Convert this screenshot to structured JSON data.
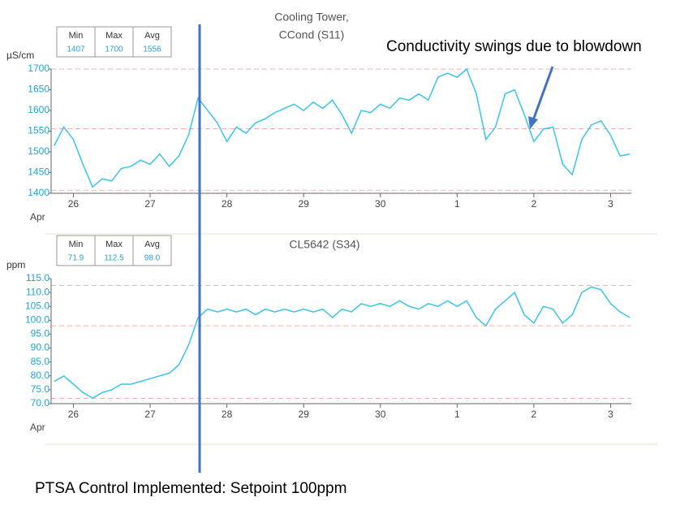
{
  "chart_data": [
    {
      "type": "line",
      "title": [
        "Cooling Tower,",
        "CCond (S11)"
      ],
      "y_label": "µS/cm",
      "x_label": "Apr",
      "stats": {
        "headers": [
          "Min",
          "Max",
          "Avg"
        ],
        "values": [
          1407,
          1700,
          1556
        ]
      },
      "color": "#38c4ec",
      "x": [
        -0.25,
        -0.125,
        0,
        0.125,
        0.25,
        0.375,
        0.5,
        0.625,
        0.75,
        0.875,
        1,
        1.125,
        1.25,
        1.375,
        1.5,
        1.625,
        1.75,
        1.875,
        2,
        2.125,
        2.25,
        2.375,
        2.5,
        2.625,
        2.75,
        2.875,
        3,
        3.125,
        3.25,
        3.375,
        3.5,
        3.625,
        3.75,
        3.875,
        4,
        4.125,
        4.25,
        4.375,
        4.5,
        4.625,
        4.75,
        4.875,
        5,
        5.125,
        5.25,
        5.375,
        5.5,
        5.625,
        5.75,
        5.875,
        6,
        6.125,
        6.25,
        6.375,
        6.5,
        6.625,
        6.75,
        6.875,
        7,
        7.125,
        7.25
      ],
      "values": [
        1515,
        1560,
        1530,
        1470,
        1415,
        1435,
        1430,
        1460,
        1465,
        1480,
        1470,
        1495,
        1465,
        1490,
        1540,
        1630,
        1600,
        1570,
        1525,
        1560,
        1545,
        1570,
        1580,
        1595,
        1605,
        1615,
        1600,
        1620,
        1605,
        1625,
        1590,
        1545,
        1600,
        1595,
        1615,
        1605,
        1630,
        1625,
        1640,
        1625,
        1680,
        1690,
        1680,
        1700,
        1640,
        1530,
        1560,
        1640,
        1650,
        1590,
        1525,
        1555,
        1560,
        1470,
        1445,
        1530,
        1565,
        1575,
        1540,
        1490,
        1495
      ],
      "xlim": [
        -0.29,
        7.27
      ],
      "xticks": [
        {
          "value": 0,
          "label": "26"
        },
        {
          "value": 1,
          "label": "27"
        },
        {
          "value": 2,
          "label": "28"
        },
        {
          "value": 3,
          "label": "29"
        },
        {
          "value": 4,
          "label": "30"
        },
        {
          "value": 5,
          "label": "1"
        },
        {
          "value": 6,
          "label": "2"
        },
        {
          "value": 7,
          "label": "3"
        }
      ],
      "ylim": [
        1400,
        1700
      ],
      "yticks": [
        1400,
        1450,
        1500,
        1550,
        1600,
        1650,
        1700
      ]
    },
    {
      "type": "line",
      "title": [
        "CL5642 (S34)"
      ],
      "y_label": "ppm",
      "x_label": "Apr",
      "stats": {
        "headers": [
          "Min",
          "Max",
          "Avg"
        ],
        "values": [
          71.9,
          112.5,
          {
            "value": 98,
            "label": "98.0"
          }
        ]
      },
      "color": "#38c4ec",
      "x": [
        -0.25,
        -0.125,
        0,
        0.125,
        0.25,
        0.375,
        0.5,
        0.625,
        0.75,
        0.875,
        1,
        1.125,
        1.25,
        1.375,
        1.5,
        1.625,
        1.75,
        1.875,
        2,
        2.125,
        2.25,
        2.375,
        2.5,
        2.625,
        2.75,
        2.875,
        3,
        3.125,
        3.25,
        3.375,
        3.5,
        3.625,
        3.75,
        3.875,
        4,
        4.125,
        4.25,
        4.375,
        4.5,
        4.625,
        4.75,
        4.875,
        5,
        5.125,
        5.25,
        5.375,
        5.5,
        5.625,
        5.75,
        5.875,
        6,
        6.125,
        6.25,
        6.375,
        6.5,
        6.625,
        6.75,
        6.875,
        7,
        7.125,
        7.25
      ],
      "values": [
        78,
        80,
        77,
        74,
        72,
        74,
        75,
        77,
        77,
        78,
        79,
        80,
        81,
        84,
        91,
        101,
        104,
        103,
        104,
        103,
        104,
        102,
        104,
        103,
        104,
        103,
        104,
        103,
        104,
        101,
        104,
        103,
        106,
        105,
        106,
        105,
        107,
        105,
        104,
        106,
        105,
        107,
        105,
        107,
        101,
        98,
        104,
        107,
        110,
        102,
        99,
        105,
        104,
        99,
        102,
        110,
        112,
        111,
        106,
        103,
        101
      ],
      "xlim": [
        -0.29,
        7.27
      ],
      "xticks": [
        {
          "value": 0,
          "label": "26"
        },
        {
          "value": 1,
          "label": "27"
        },
        {
          "value": 2,
          "label": "28"
        },
        {
          "value": 3,
          "label": "29"
        },
        {
          "value": 4,
          "label": "30"
        },
        {
          "value": 5,
          "label": "1"
        },
        {
          "value": 6,
          "label": "2"
        },
        {
          "value": 7,
          "label": "3"
        }
      ],
      "ylim": [
        70,
        115
      ],
      "yticks": [
        {
          "value": 70,
          "label": "70.0"
        },
        {
          "value": 75,
          "label": "75.0"
        },
        {
          "value": 80,
          "label": "80.0"
        },
        {
          "value": 85,
          "label": "85.0"
        },
        {
          "value": 90,
          "label": "90.0"
        },
        {
          "value": 95,
          "label": "95.0"
        },
        {
          "value": 100,
          "label": "100.0"
        },
        {
          "value": 105,
          "label": "105.0"
        },
        {
          "value": 110,
          "label": "110.0"
        },
        {
          "value": 115,
          "label": "115.0"
        }
      ]
    }
  ],
  "annotations": {
    "note": "Conductivity swings due to blowdown",
    "footer": "PTSA Control Implemented: Setpoint 100ppm"
  }
}
